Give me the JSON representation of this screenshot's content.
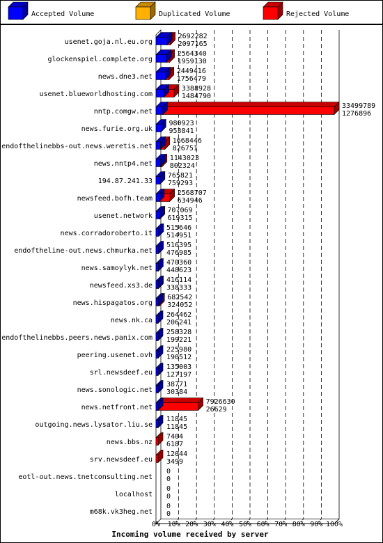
{
  "chart_data": {
    "type": "bar",
    "orientation": "horizontal",
    "title": "",
    "xlabel": "Incoming volume received by server",
    "ylabel": "",
    "xlim": [
      0,
      100
    ],
    "x_unit": "%",
    "grid": true,
    "legend_position": "top",
    "ticks": [
      "0%",
      "10%",
      "20%",
      "30%",
      "40%",
      "50%",
      "60%",
      "70%",
      "80%",
      "90%",
      "100%"
    ],
    "max_volume": 33499789,
    "series": [
      {
        "name": "Accepted Volume",
        "color": "#0000ff"
      },
      {
        "name": "Duplicated Volume",
        "color": "#ffb000"
      },
      {
        "name": "Rejected Volume",
        "color": "#ff0000"
      }
    ],
    "categories": [
      "usenet.goja.nl.eu.org",
      "glockenspiel.complete.org",
      "news.dne3.net",
      "usenet.blueworldhosting.com",
      "nntp.comgw.net",
      "news.furie.org.uk",
      "endofthelinebbs-out.news.weretis.net",
      "news.nntp4.net",
      "194.87.241.33",
      "newsfeed.bofh.team",
      "usenet.network",
      "news.corradoroberto.it",
      "endoftheline-out.news.chmurka.net",
      "news.samoylyk.net",
      "newsfeed.xs3.de",
      "news.hispagatos.org",
      "news.nk.ca",
      "endofthelinebbs.peers.news.panix.com",
      "peering.usenet.ovh",
      "srl.newsdeef.eu",
      "news.sonologic.net",
      "news.netfront.net",
      "outgoing.news.lysator.liu.se",
      "news.bbs.nz",
      "srv.newsdeef.eu",
      "eotl-out.news.tnetconsulting.net",
      "localhost",
      "m68k.vk3heg.net"
    ],
    "total_volume": [
      2692282,
      2564340,
      2449416,
      3388928,
      33499789,
      980923,
      1668446,
      1143023,
      765821,
      2568707,
      707069,
      515646,
      516395,
      470360,
      416114,
      682542,
      264462,
      258328,
      225980,
      135003,
      38771,
      7926630,
      11845,
      7404,
      12044,
      0,
      0,
      0
    ],
    "accepted_volume": [
      2097165,
      1959130,
      1756479,
      1484790,
      1276896,
      953841,
      826751,
      802324,
      759293,
      634946,
      619315,
      514951,
      476985,
      448623,
      338333,
      324052,
      206241,
      199221,
      190512,
      127197,
      30384,
      26629,
      11845,
      6187,
      3499,
      0,
      0,
      0
    ],
    "accepted_shown_as_rejected": [
      false,
      false,
      false,
      false,
      false,
      false,
      false,
      false,
      false,
      false,
      false,
      false,
      false,
      false,
      false,
      false,
      false,
      false,
      false,
      false,
      false,
      false,
      false,
      true,
      true,
      false,
      false,
      false
    ]
  }
}
